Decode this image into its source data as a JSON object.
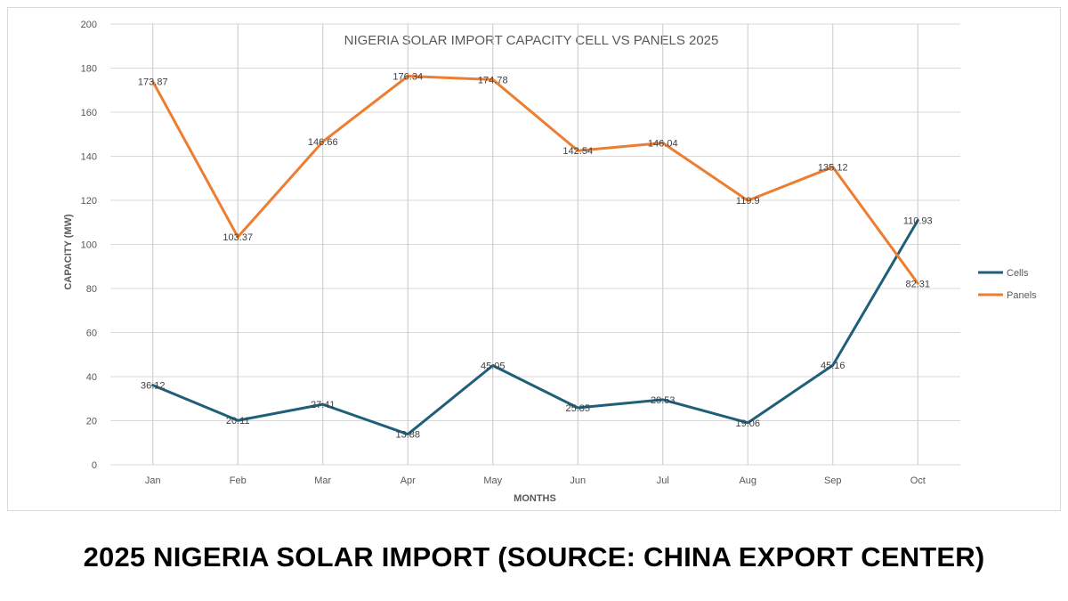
{
  "caption": "2025 NIGERIA SOLAR IMPORT (SOURCE: CHINA EXPORT CENTER)",
  "chart_data": {
    "type": "line",
    "title": "NIGERIA SOLAR IMPORT CAPACITY  CELL VS PANELS  2025",
    "xlabel": "MONTHS",
    "ylabel": "CAPACITY (MW)",
    "categories": [
      "Jan",
      "Feb",
      "Mar",
      "Apr",
      "May",
      "Jun",
      "Jul",
      "Aug",
      "Sep",
      "Oct"
    ],
    "ylim": [
      0,
      200
    ],
    "yticks": [
      0,
      20,
      40,
      60,
      80,
      100,
      120,
      140,
      160,
      180,
      200
    ],
    "grid": true,
    "legend": "right",
    "series": [
      {
        "name": "Cells",
        "color": "#1f5f7a",
        "values": [
          36.12,
          20.11,
          27.41,
          13.88,
          45.05,
          25.85,
          29.53,
          19.06,
          45.16,
          110.93
        ],
        "labels": [
          "36.12",
          "20.11",
          "27.41",
          "13.88",
          "45.05",
          "25.85",
          "29.53",
          "19.06",
          "45.16",
          "110.93"
        ]
      },
      {
        "name": "Panels",
        "color": "#ed7d31",
        "values": [
          173.87,
          103.37,
          146.66,
          176.34,
          174.78,
          142.54,
          146.04,
          119.9,
          135.12,
          82.31
        ],
        "labels": [
          "173.87",
          "103.37",
          "146.66",
          "176.34",
          "174.78",
          "142.54",
          "146.04",
          "119.9",
          "135.12",
          "82.31"
        ]
      }
    ]
  }
}
